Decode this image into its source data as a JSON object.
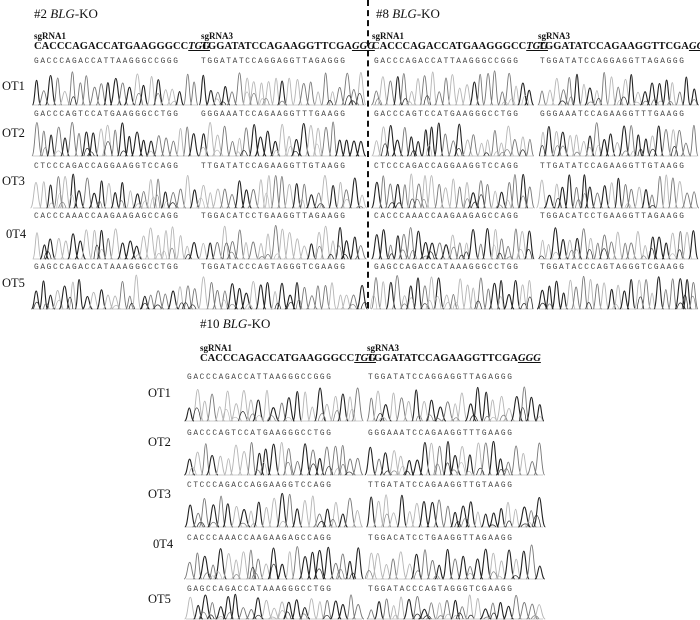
{
  "panels": [
    {
      "title_num": "#2 ",
      "title_gene": "BLG",
      "title_suffix": "-KO",
      "sgrnas": [
        {
          "label": "sgRNA1",
          "seq": "CACCCAGACCATGAAGGGCC",
          "pam": "TGG"
        },
        {
          "label": "sgRNA3",
          "seq": "TGGATATCCAGAAGGTTCGA",
          "pam": "GGG"
        }
      ],
      "rows": [
        {
          "label": "OT1",
          "seqs": [
            "GACCCAGACCATTAAGGGCCGGG",
            "TGGATATCCAGGAGGTTAGAGGG"
          ]
        },
        {
          "label": "OT2",
          "seqs": [
            "GACCCAGTCCATGAAGGGCCTGG",
            "GGGAAATCCAGAAGGTTTGAAGG"
          ]
        },
        {
          "label": "OT3",
          "seqs": [
            "CTCCCAGACCAGGAAGGTCCAGG",
            "TTGATATCCAGAAGGTTGTAAGG"
          ]
        },
        {
          "label": "0T4",
          "seqs": [
            "CACCCAAACCAAGAAGAGCCAGG",
            "TGGACATCCTGAAGGTTAGAAGG"
          ]
        },
        {
          "label": "OT5",
          "seqs": [
            "GAGCCAGACCATAAAGGGCCTGG",
            "TGGATACCCAGTAGGGTCGAAGG"
          ]
        }
      ]
    },
    {
      "title_num": "#8 ",
      "title_gene": "BLG",
      "title_suffix": "-KO",
      "sgrnas": [
        {
          "label": "sgRNA1",
          "seq": "CACCCAGACCATGAAGGGCC",
          "pam": "TGG"
        },
        {
          "label": "sgRNA3",
          "seq": "TGGATATCCAGAAGGTTCGA",
          "pam": "GGG"
        }
      ],
      "rows": [
        {
          "label": "",
          "seqs": [
            "GACCCAGACCATTAAGGGCCGGG",
            "TGGATATCCAGGAGGTTAGAGGG"
          ]
        },
        {
          "label": "",
          "seqs": [
            "GACCCAGTCCATGAAGGGCCTGG",
            "GGGAAATCCAGAAGGTTTGAAGG"
          ]
        },
        {
          "label": "",
          "seqs": [
            "CTCCCAGACCAGGAAGGTCCAGG",
            "TTGATATCCAGAAGGTTGTAAGG"
          ]
        },
        {
          "label": "",
          "seqs": [
            "CACCCAAACCAAGAAGAGCCAGG",
            "TGGACATCCTGAAGGTTAGAAGG"
          ]
        },
        {
          "label": "",
          "seqs": [
            "GAGCCAGACCATAAAGGGCCTGG",
            "TGGATACCCAGTAGGGTCGAAGG"
          ]
        }
      ]
    },
    {
      "title_num": "#10 ",
      "title_gene": "BLG",
      "title_suffix": "-KO",
      "sgrnas": [
        {
          "label": "sgRNA1",
          "seq": "CACCCAGACCATGAAGGGCC",
          "pam": "TGG"
        },
        {
          "label": "sgRNA3",
          "seq": "TGGATATCCAGAAGGTTCGA",
          "pam": "GGG"
        }
      ],
      "rows": [
        {
          "label": "OT1",
          "seqs": [
            "GACCCAGACCATTAAGGGCCGGG",
            "TGGATATCCAGGAGGTTAGAGGG"
          ]
        },
        {
          "label": "OT2",
          "seqs": [
            "GACCCAGTCCATGAAGGGCCTGG",
            "GGGAAATCCAGAAGGTTTGAAGG"
          ]
        },
        {
          "label": "OT3",
          "seqs": [
            "CTCCCAGACCAGGAAGGTCCAGG",
            "TTGATATCCAGAAGGTTGTAAGG"
          ]
        },
        {
          "label": "0T4",
          "seqs": [
            "CACCCAAACCAAGAAGAGCCAGG",
            "TGGACATCCTGAAGGTTAGAAGG"
          ]
        },
        {
          "label": "OT5",
          "seqs": [
            "GAGCCAGACCATAAAGGGCCTGG",
            "TGGATACCCAGTAGGGTCGAAGG"
          ]
        }
      ]
    }
  ],
  "colors": {
    "trace_dark": "#222222",
    "trace_mid": "#777777",
    "trace_light": "#b5b5b5"
  }
}
